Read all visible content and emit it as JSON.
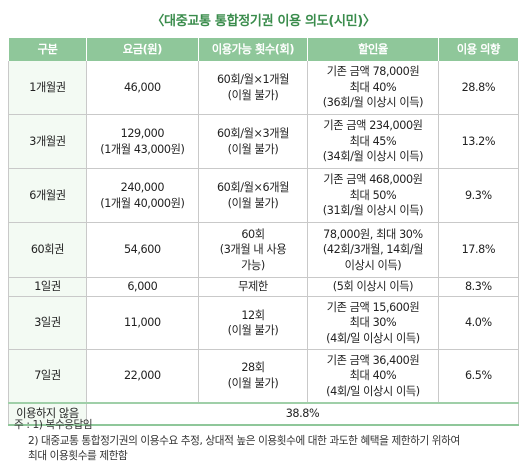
{
  "title": "〈대중교통 통합정기권 이용 의도(시민)〉",
  "headers": [
    "구분",
    "요금(원)",
    "이용가능 횟수(회)",
    "할인율",
    "이용 의향"
  ],
  "rows": [
    {
      "type": "1개월권",
      "fee": [
        "46,000"
      ],
      "count": [
        "60회/월×1개월",
        "(이월 불가)"
      ],
      "discount": [
        "기존 금액 78,000원",
        "최대 40%",
        "(36회/월 이상시 이득)"
      ],
      "intent": "28.8%"
    },
    {
      "type": "3개월권",
      "fee": [
        "129,000",
        "(1개월 43,000원)"
      ],
      "count": [
        "60회/월×3개월",
        "(이월 불가)"
      ],
      "discount": [
        "기존 금액 234,000원",
        "최대 45%",
        "(34회/월 이상시 이득)"
      ],
      "intent": "13.2%"
    },
    {
      "type": "6개월권",
      "fee": [
        "240,000",
        "(1개월 40,000원)"
      ],
      "count": [
        "60회/월×6개월",
        "(이월 불가)"
      ],
      "discount": [
        "기존 금액 468,000원",
        "최대 50%",
        "(31회/월 이상시 이득)"
      ],
      "intent": "9.3%"
    },
    {
      "type": "60회권",
      "fee": [
        "54,600"
      ],
      "count": [
        "60회",
        "(3개월 내 사용",
        "가능)"
      ],
      "discount": [
        "78,000원, 최대 30%",
        "(42회/3개월, 14회/월",
        "이상시 이득)"
      ],
      "intent": "17.8%"
    },
    {
      "type": "1일권",
      "fee": [
        "6,000"
      ],
      "count": [
        "무제한"
      ],
      "discount": [
        "(5회 이상시 이득)"
      ],
      "intent": "8.3%"
    },
    {
      "type": "3일권",
      "fee": [
        "11,000"
      ],
      "count": [
        "12회",
        "(이월 불가)"
      ],
      "discount": [
        "기존 금액 15,600원",
        "최대 30%",
        "(4회/일 이상시 이득)"
      ],
      "intent": "4.0%"
    },
    {
      "type": "7일권",
      "fee": [
        "22,000"
      ],
      "count": [
        "28회",
        "(이월 불가)"
      ],
      "discount": [
        "기존 금액 36,400원",
        "최대 40%",
        "(4회/일 이상시 이득)"
      ],
      "intent": "6.5%"
    }
  ],
  "no_use": {
    "label": "이용하지 않음",
    "value": "38.8%"
  },
  "notes": {
    "prefix": "주 :",
    "n1": "1) 복수응답임",
    "n2": "2) 대중교통 통합정기권의 이용수요 추정, 상대적 높은 이용횟수에 대한 과도한 혜택을 제한하기 위하여",
    "n2b": "최대 이용횟수를 제한함"
  }
}
